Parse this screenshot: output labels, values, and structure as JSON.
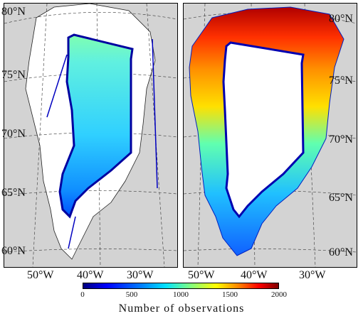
{
  "latitudes": [
    "80°N",
    "75°N",
    "70°N",
    "65°N",
    "60°N"
  ],
  "longitudes": [
    "50°W",
    "40°W",
    "30°W"
  ],
  "colorbar": {
    "title": "Number of observations",
    "ticks": [
      "0",
      "500",
      "1000",
      "1500",
      "2000"
    ],
    "min": 0,
    "max": 2000,
    "colormap": "jet"
  },
  "colors": {
    "ocean": "#d3d3d3",
    "coastline": "#222222",
    "grid": "#333333"
  }
}
